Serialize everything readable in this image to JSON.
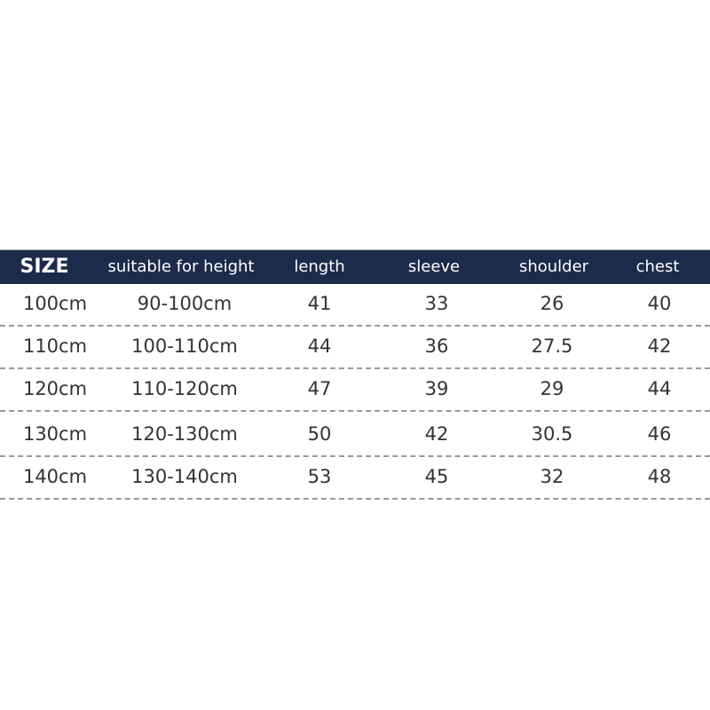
{
  "table": {
    "header_color": "#1c2b4a",
    "headers": [
      "SIZE",
      "suitable for height",
      "length",
      "sleeve",
      "shoulder",
      "chest"
    ],
    "rows": [
      [
        "100cm",
        "90-100cm",
        "41",
        "33",
        "26",
        "40"
      ],
      [
        "110cm",
        "100-110cm",
        "44",
        "36",
        "27.5",
        "42"
      ],
      [
        "120cm",
        "110-120cm",
        "47",
        "39",
        "29",
        "44"
      ],
      [
        "130cm",
        "120-130cm",
        "50",
        "42",
        "30.5",
        "46"
      ],
      [
        "140cm",
        "130-140cm",
        "53",
        "45",
        "32",
        "48"
      ]
    ]
  }
}
